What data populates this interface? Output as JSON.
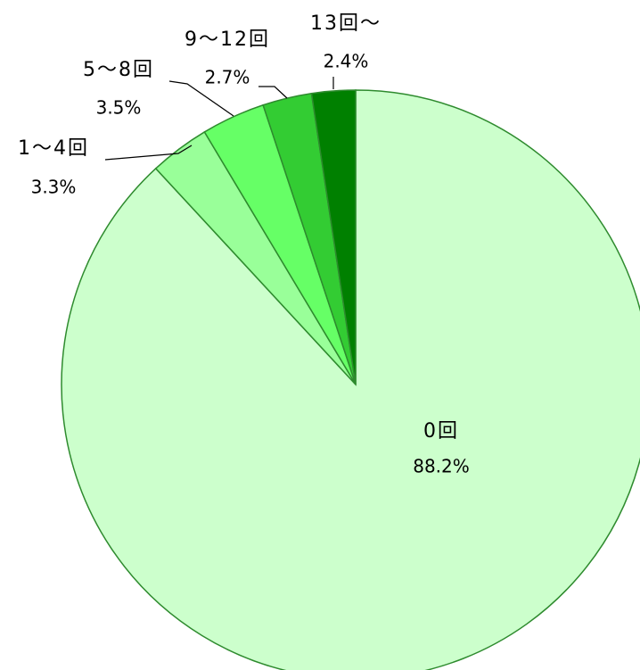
{
  "chart_data": {
    "type": "pie",
    "categories": [
      "0回",
      "1～4回",
      "5～8回",
      "9～12回",
      "13回～"
    ],
    "values": [
      88.2,
      3.3,
      3.5,
      2.7,
      2.4
    ],
    "value_labels": [
      "88.2%",
      "3.3%",
      "3.5%",
      "2.7%",
      "2.4%"
    ],
    "colors": [
      "#ccffcc",
      "#99ff99",
      "#66ff66",
      "#33cc33",
      "#008000"
    ],
    "edge_color": "#2e8b2e"
  }
}
